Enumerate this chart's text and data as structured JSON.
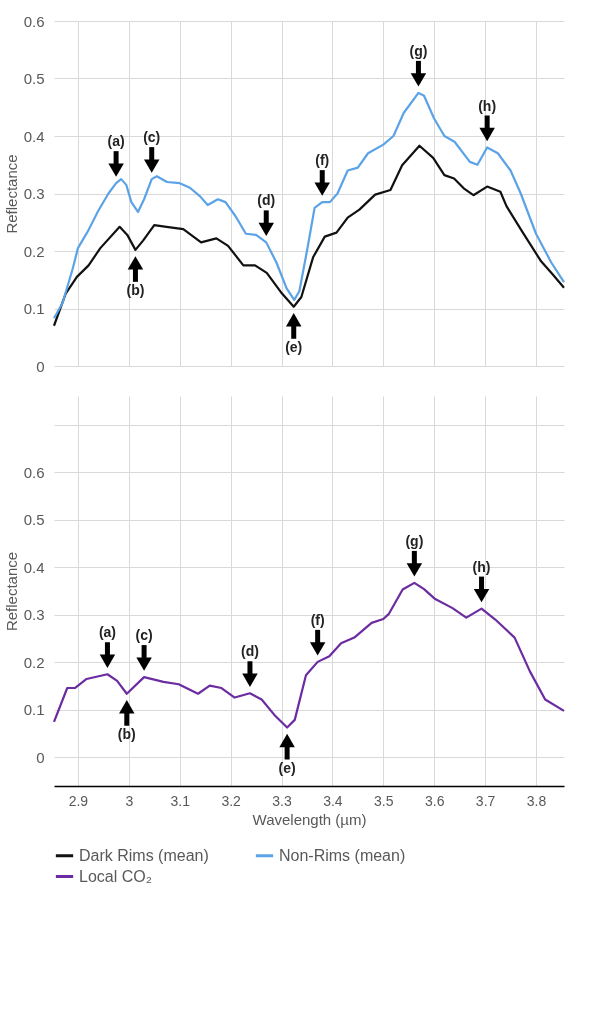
{
  "chart_data": [
    {
      "type": "line",
      "ylabel": "Reflectance",
      "xlim": [
        2.853,
        3.855
      ],
      "ylim": [
        0,
        0.6
      ],
      "xticks": [
        2.9,
        3,
        3.1,
        3.2,
        3.3,
        3.4,
        3.5,
        3.6,
        3.7,
        3.8
      ],
      "yticks": [
        0,
        0.1,
        0.2,
        0.3,
        0.4,
        0.5,
        0.6
      ],
      "tick_labels": "y",
      "grid": true,
      "legend": "bottom",
      "line_style": "solid",
      "marker": "none",
      "series": [
        {
          "name": "Dark Rims (mean)",
          "color": "#111111",
          "x": [
            2.853,
            2.876,
            2.898,
            2.921,
            2.944,
            2.982,
            2.997,
            3.013,
            3.028,
            3.05,
            3.074,
            3.107,
            3.142,
            3.172,
            3.195,
            3.225,
            3.248,
            3.271,
            3.301,
            3.324,
            3.339,
            3.362,
            3.385,
            3.408,
            3.43,
            3.453,
            3.484,
            3.514,
            3.537,
            3.571,
            3.598,
            3.62,
            3.639,
            3.658,
            3.677,
            3.704,
            3.73,
            3.742,
            3.772,
            3.81,
            3.833,
            3.855
          ],
          "values": [
            0.07,
            0.126,
            0.155,
            0.175,
            0.205,
            0.242,
            0.228,
            0.202,
            0.218,
            0.245,
            0.242,
            0.238,
            0.215,
            0.222,
            0.209,
            0.175,
            0.175,
            0.162,
            0.126,
            0.103,
            0.12,
            0.189,
            0.225,
            0.232,
            0.258,
            0.272,
            0.298,
            0.306,
            0.349,
            0.383,
            0.362,
            0.332,
            0.326,
            0.309,
            0.297,
            0.312,
            0.303,
            0.278,
            0.235,
            0.182,
            0.159,
            0.136
          ]
        },
        {
          "name": "Non-Rims (mean)",
          "color": "#5ba3e6",
          "x": [
            2.853,
            2.87,
            2.89,
            2.9,
            2.92,
            2.94,
            2.96,
            2.975,
            2.985,
            2.995,
            3.005,
            3.018,
            3.03,
            3.045,
            3.055,
            3.075,
            3.1,
            3.12,
            3.14,
            3.155,
            3.175,
            3.19,
            3.21,
            3.23,
            3.25,
            3.27,
            3.29,
            3.31,
            3.325,
            3.335,
            3.35,
            3.365,
            3.38,
            3.395,
            3.41,
            3.43,
            3.45,
            3.47,
            3.5,
            3.52,
            3.54,
            3.569,
            3.58,
            3.6,
            3.62,
            3.64,
            3.67,
            3.685,
            3.704,
            3.725,
            3.75,
            3.77,
            3.8,
            3.83,
            3.855
          ],
          "values": [
            0.083,
            0.11,
            0.17,
            0.205,
            0.235,
            0.27,
            0.3,
            0.318,
            0.325,
            0.315,
            0.285,
            0.268,
            0.29,
            0.325,
            0.33,
            0.32,
            0.318,
            0.31,
            0.295,
            0.28,
            0.29,
            0.285,
            0.26,
            0.23,
            0.228,
            0.215,
            0.18,
            0.135,
            0.115,
            0.13,
            0.2,
            0.275,
            0.285,
            0.285,
            0.3,
            0.34,
            0.345,
            0.37,
            0.385,
            0.4,
            0.44,
            0.475,
            0.47,
            0.43,
            0.4,
            0.39,
            0.355,
            0.35,
            0.38,
            0.37,
            0.34,
            0.3,
            0.23,
            0.18,
            0.146
          ]
        }
      ],
      "annotations": [
        {
          "text": "(a)",
          "x": 2.975,
          "y": 0.318
        },
        {
          "text": "(b)",
          "x": 3.013,
          "y": 0.202
        },
        {
          "text": "(c)",
          "x": 3.045,
          "y": 0.325
        },
        {
          "text": "(d)",
          "x": 3.27,
          "y": 0.215
        },
        {
          "text": "(e)",
          "x": 3.324,
          "y": 0.103
        },
        {
          "text": "(f)",
          "x": 3.38,
          "y": 0.285
        },
        {
          "text": "(g)",
          "x": 3.569,
          "y": 0.475
        },
        {
          "text": "(h)",
          "x": 3.704,
          "y": 0.38
        }
      ]
    },
    {
      "type": "line",
      "xlabel": "Wavelength (µm)",
      "ylabel": "Reflectance",
      "xlim": [
        2.853,
        3.855
      ],
      "ylim": [
        -0.06,
        0.76
      ],
      "xticks": [
        2.9,
        3,
        3.1,
        3.2,
        3.3,
        3.4,
        3.5,
        3.6,
        3.7,
        3.8
      ],
      "yticks": [
        0,
        0.1,
        0.2,
        0.3,
        0.4,
        0.5,
        0.6,
        {
          "value": 0.7,
          "label": null
        }
      ],
      "grid": true,
      "legend": "bottom",
      "line_style": "solid",
      "marker": "none",
      "series": [
        {
          "name": "Local CO₂",
          "color": "#6a2ca0",
          "x": [
            2.853,
            2.879,
            2.894,
            2.917,
            2.958,
            2.977,
            2.996,
            3.03,
            3.068,
            3.098,
            3.136,
            3.159,
            3.182,
            3.208,
            3.238,
            3.261,
            3.288,
            3.311,
            3.326,
            3.348,
            3.371,
            3.394,
            3.417,
            3.443,
            3.477,
            3.5,
            3.511,
            3.538,
            3.561,
            3.58,
            3.602,
            3.636,
            3.663,
            3.693,
            3.72,
            3.758,
            3.788,
            3.818,
            3.855
          ],
          "values": [
            0.075,
            0.146,
            0.146,
            0.165,
            0.175,
            0.161,
            0.134,
            0.169,
            0.159,
            0.154,
            0.134,
            0.151,
            0.146,
            0.126,
            0.135,
            0.122,
            0.087,
            0.063,
            0.079,
            0.173,
            0.201,
            0.213,
            0.24,
            0.252,
            0.283,
            0.291,
            0.302,
            0.353,
            0.367,
            0.354,
            0.333,
            0.314,
            0.294,
            0.313,
            0.29,
            0.252,
            0.181,
            0.122,
            0.098
          ]
        }
      ],
      "annotations": [
        {
          "text": "(a)",
          "x": 2.958,
          "y": 0.175
        },
        {
          "text": "(b)",
          "x": 2.996,
          "y": 0.134
        },
        {
          "text": "(c)",
          "x": 3.03,
          "y": 0.169
        },
        {
          "text": "(d)",
          "x": 3.238,
          "y": 0.135
        },
        {
          "text": "(e)",
          "x": 3.311,
          "y": 0.063
        },
        {
          "text": "(f)",
          "x": 3.371,
          "y": 0.201
        },
        {
          "text": "(g)",
          "x": 3.561,
          "y": 0.367
        },
        {
          "text": "(h)",
          "x": 3.693,
          "y": 0.313
        }
      ]
    }
  ]
}
